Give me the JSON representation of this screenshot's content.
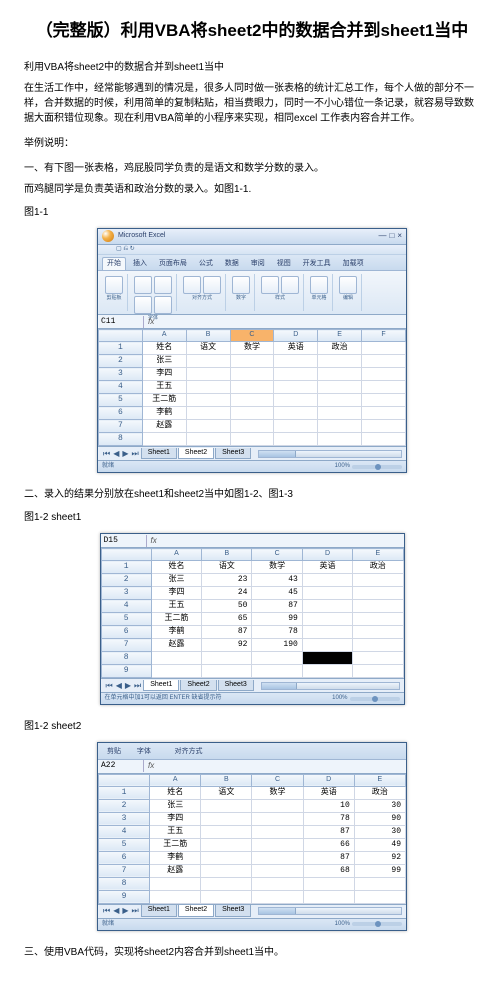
{
  "doc": {
    "title": "（完整版）利用VBA将sheet2中的数据合并到sheet1当中",
    "p1": "利用VBA将sheet2中的数据合并到sheet1当中",
    "p2": "在生活工作中，经常能够遇到的情况是，很多人同时做一张表格的统计汇总工作，每个人做的部分不一样，合并数据的时候，利用简单的复制粘贴，相当费眼力，同时一不小心错位一条记录，就容易导致数据大面积错位现象。现在利用VBA简单的小程序来实现，相同excel 工作表内容合并工作。",
    "p3": "举例说明：",
    "p4": "一、有下图一张表格，鸡屁股同学负责的是语文和数学分数的录入。",
    "p5": "而鸡腿同学是负责英语和政治分数的录入。如图1-1.",
    "fig1": "图1-1",
    "p6": "二、录入的结果分别放在sheet1和sheet2当中如图1-2、图1-3",
    "fig2": "图1-2 sheet1",
    "fig3": "图1-2 sheet2",
    "p7": "三、使用VBA代码，实现将sheet2内容合并到sheet1当中。"
  },
  "excel1": {
    "titlebar": "Microsoft Excel",
    "tabs": [
      "开始",
      "插入",
      "页面布局",
      "公式",
      "数据",
      "审阅",
      "视图",
      "开发工具",
      "加载项"
    ],
    "tab_sel_idx": 0,
    "namebox": "C11",
    "headers": [
      "",
      "A",
      "B",
      "C",
      "D",
      "E",
      "F"
    ],
    "rows": [
      [
        "1",
        "姓名",
        "语文",
        "数学",
        "英语",
        "政治",
        ""
      ],
      [
        "2",
        "张三",
        "",
        "",
        "",
        "",
        ""
      ],
      [
        "3",
        "李四",
        "",
        "",
        "",
        "",
        ""
      ],
      [
        "4",
        "王五",
        "",
        "",
        "",
        "",
        ""
      ],
      [
        "5",
        "王二筋",
        "",
        "",
        "",
        "",
        ""
      ],
      [
        "6",
        "李鹤",
        "",
        "",
        "",
        "",
        ""
      ],
      [
        "7",
        "赵露",
        "",
        "",
        "",
        "",
        ""
      ],
      [
        "8",
        "",
        "",
        "",
        "",
        "",
        ""
      ]
    ],
    "selcol": "C",
    "selrow": "11",
    "sheets": [
      "Sheet1",
      "Sheet2",
      "Sheet3"
    ],
    "active_sheet": 1,
    "status_left": "就绪",
    "zoom": "100%"
  },
  "excel2": {
    "namebox": "D15",
    "fxval": "",
    "headers": [
      "",
      "A",
      "B",
      "C",
      "D",
      "E"
    ],
    "rows": [
      [
        "1",
        "姓名",
        "语文",
        "数学",
        "英语",
        "政治"
      ],
      [
        "2",
        "张三",
        "23",
        "43",
        "",
        ""
      ],
      [
        "3",
        "李四",
        "24",
        "45",
        "",
        ""
      ],
      [
        "4",
        "王五",
        "50",
        "87",
        "",
        ""
      ],
      [
        "5",
        "王二筋",
        "65",
        "99",
        "",
        ""
      ],
      [
        "6",
        "李鹤",
        "87",
        "78",
        "",
        ""
      ],
      [
        "7",
        "赵露",
        "92",
        "190",
        "",
        ""
      ],
      [
        "8",
        "",
        "",
        "",
        "",
        ""
      ],
      [
        "9",
        "",
        "",
        "",
        "",
        ""
      ]
    ],
    "blackbox_row": 8,
    "blackbox_col": 4,
    "sheets": [
      "Sheet1",
      "Sheet2",
      "Sheet3"
    ],
    "active_sheet": 0,
    "status_left": "在单元格中加1可以返回 ENTER 缺省提示符",
    "zoom": "100%"
  },
  "excel3": {
    "tabs": [
      "剪贴",
      "字体",
      "对齐方式"
    ],
    "namebox": "A22",
    "fxval": "",
    "headers": [
      "",
      "A",
      "B",
      "C",
      "D",
      "E"
    ],
    "rows": [
      [
        "1",
        "姓名",
        "语文",
        "数学",
        "英语",
        "政治"
      ],
      [
        "2",
        "张三",
        "",
        "",
        "10",
        "30"
      ],
      [
        "3",
        "李四",
        "",
        "",
        "78",
        "90"
      ],
      [
        "4",
        "王五",
        "",
        "",
        "87",
        "30"
      ],
      [
        "5",
        "王二筋",
        "",
        "",
        "66",
        "49"
      ],
      [
        "6",
        "李鹤",
        "",
        "",
        "87",
        "92"
      ],
      [
        "7",
        "赵露",
        "",
        "",
        "68",
        "99"
      ],
      [
        "8",
        "",
        "",
        "",
        "",
        ""
      ],
      [
        "9",
        "",
        "",
        "",
        "",
        ""
      ]
    ],
    "sheets": [
      "Sheet1",
      "Sheet2",
      "Sheet3"
    ],
    "active_sheet": 1,
    "status_left": "就绪",
    "zoom": "100%"
  },
  "colors": {
    "accent": "#3a5f8a",
    "sel": "#f8b36a"
  }
}
